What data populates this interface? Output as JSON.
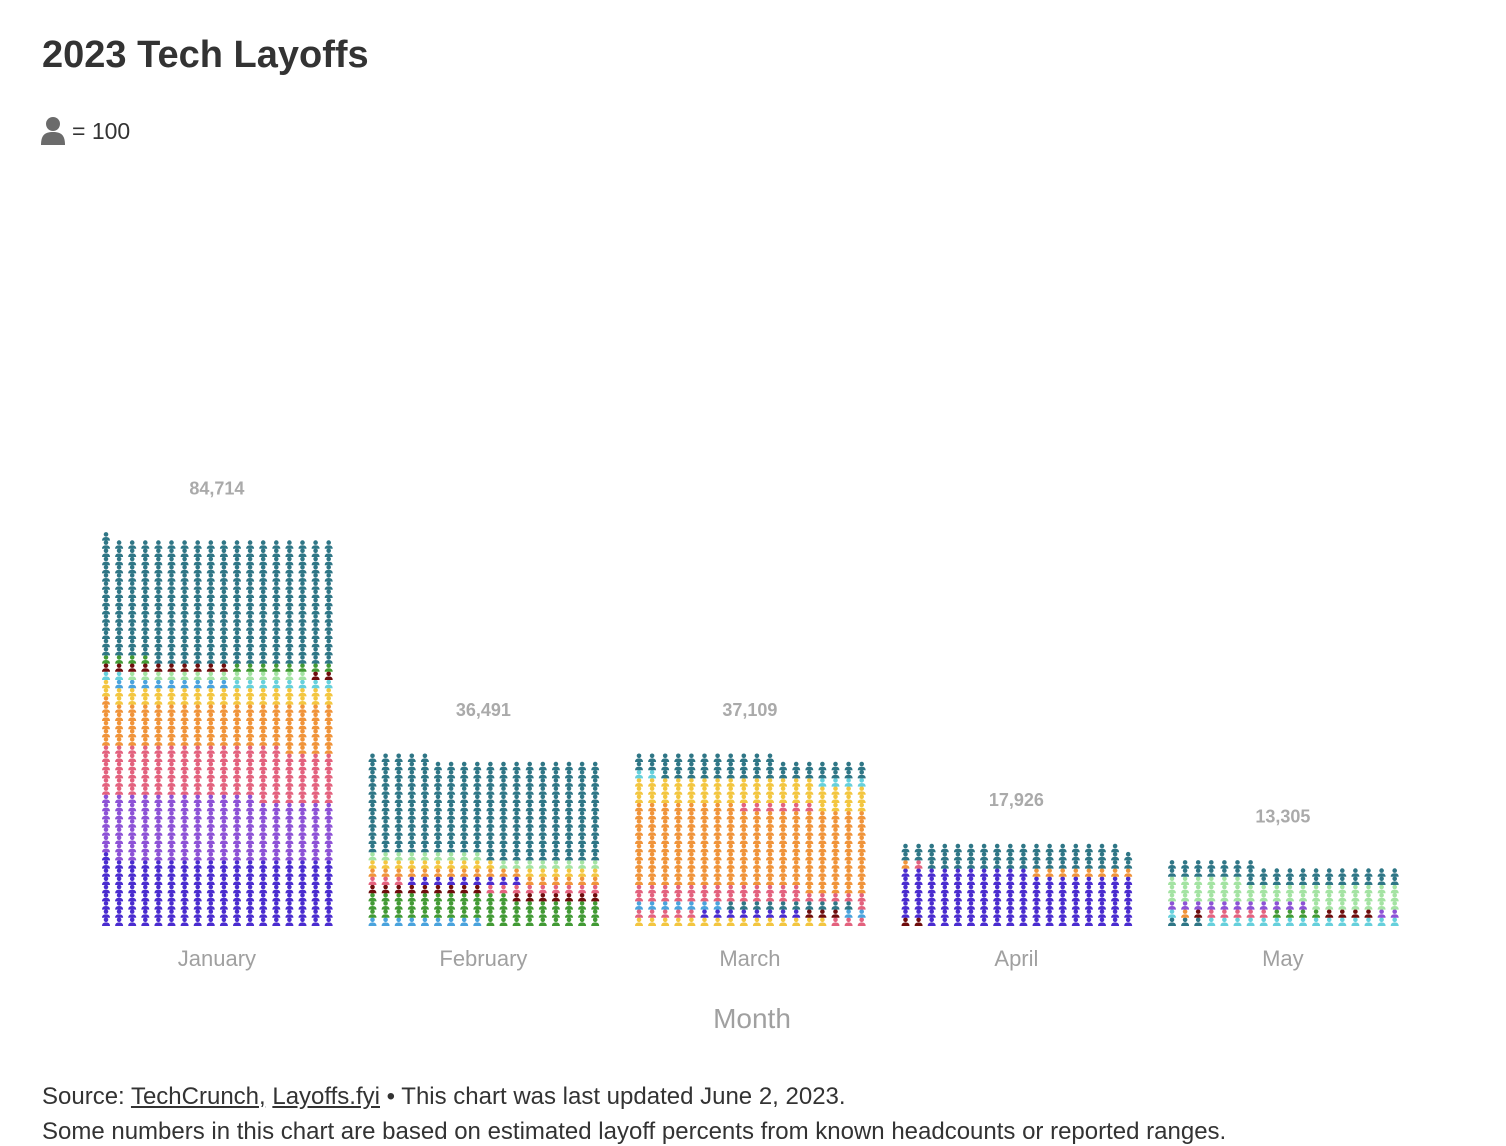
{
  "title": "2023 Tech Layoffs",
  "legend": {
    "icon": "person-icon",
    "text": "= 100"
  },
  "chart_data": {
    "type": "bar",
    "subtype": "stacked-pictogram",
    "title": "2023 Tech Layoffs",
    "unit_per_icon": 100,
    "xlabel": "Month",
    "ylabel": "",
    "categories": [
      "January",
      "February",
      "March",
      "April",
      "May"
    ],
    "totals": [
      84714,
      36491,
      37109,
      17926,
      13305
    ],
    "total_labels": [
      "84,714",
      "36,491",
      "37,109",
      "17,926",
      "13,305"
    ],
    "segments": [
      {
        "month": "January",
        "blocks": [
          {
            "color": "#4a2ccf",
            "icons": 145
          },
          {
            "color": "#8d52d6",
            "icons": 137
          },
          {
            "color": "#e3627e",
            "icons": 110
          },
          {
            "color": "#f0943a",
            "icons": 95
          },
          {
            "color": "#f3c640",
            "icons": 36
          },
          {
            "color": "#4aa3dd",
            "icons": 9
          },
          {
            "color": "#66d0dc",
            "icons": 10
          },
          {
            "color": "#a4e3a3",
            "icons": 14
          },
          {
            "color": "#6e0d0d",
            "icons": 12
          },
          {
            "color": "#429a35",
            "icons": 12
          },
          {
            "color": "#2f7686",
            "icons": 267
          }
        ]
      },
      {
        "month": "February",
        "blocks": [
          {
            "color": "#4aa3dd",
            "icons": 9
          },
          {
            "color": "#429a35",
            "icons": 56
          },
          {
            "color": "#6e0d0d",
            "icons": 16
          },
          {
            "color": "#e3627e",
            "icons": 12
          },
          {
            "color": "#4a2ccf",
            "icons": 9
          },
          {
            "color": "#f0943a",
            "icons": 18
          },
          {
            "color": "#f3c640",
            "icons": 16
          },
          {
            "color": "#a4e3a3",
            "icons": 17
          },
          {
            "color": "#2f7686",
            "icons": 212
          }
        ]
      },
      {
        "month": "March",
        "blocks": [
          {
            "color": "#f3c640",
            "icons": 15
          },
          {
            "color": "#e3627e",
            "icons": 8
          },
          {
            "color": "#4a2ccf",
            "icons": 8
          },
          {
            "color": "#6e0d0d",
            "icons": 3
          },
          {
            "color": "#4aa3dd",
            "icons": 9
          },
          {
            "color": "#2f7686",
            "icons": 10
          },
          {
            "color": "#e3627e",
            "icons": 32
          },
          {
            "color": "#f0943a",
            "icons": 175
          },
          {
            "color": "#e3627e",
            "icons": 6
          },
          {
            "color": "#f3c640",
            "icons": 54
          },
          {
            "color": "#66d0dc",
            "icons": 6
          },
          {
            "color": "#2f7686",
            "icons": 45
          }
        ]
      },
      {
        "month": "April",
        "blocks": [
          {
            "color": "#6e0d0d",
            "icons": 2
          },
          {
            "color": "#4a2ccf",
            "icons": 116
          },
          {
            "color": "#f0943a",
            "icons": 9
          },
          {
            "color": "#e3627e",
            "icons": 1
          },
          {
            "color": "#2f7686",
            "icons": 51
          }
        ]
      },
      {
        "month": "May",
        "blocks": [
          {
            "color": "#2f7686",
            "icons": 3
          },
          {
            "color": "#66d0dc",
            "icons": 16
          },
          {
            "color": "#f0943a",
            "icons": 1
          },
          {
            "color": "#6e0d0d",
            "icons": 1
          },
          {
            "color": "#e3627e",
            "icons": 5
          },
          {
            "color": "#429a35",
            "icons": 4
          },
          {
            "color": "#6e0d0d",
            "icons": 4
          },
          {
            "color": "#8d52d6",
            "icons": 13
          },
          {
            "color": "#a4e3a3",
            "icons": 49
          },
          {
            "color": "#2f7686",
            "icons": 37
          }
        ]
      }
    ]
  },
  "footer": {
    "prefix": "Source: ",
    "link1": "TechCrunch,",
    "link2": "Layoffs.fyi",
    "suffix": " • This chart was last updated June 2, 2023.",
    "line2": "Some numbers in this chart are based on estimated layoff percents from known headcounts or reported ranges."
  }
}
